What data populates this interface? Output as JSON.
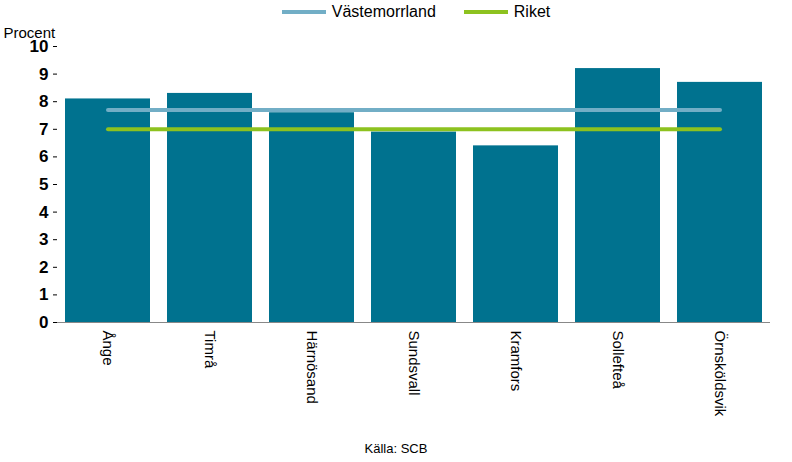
{
  "chart_data": {
    "type": "bar",
    "ylabel": "Procent",
    "caption": "Källa: SCB",
    "categories": [
      "Ånge",
      "Timrå",
      "Härnösand",
      "Sundsvall",
      "Kramfors",
      "Sollefteå",
      "Örnsköldsvik"
    ],
    "series": [
      {
        "type": "bar",
        "color": "#00728f",
        "values": [
          8.1,
          8.3,
          7.6,
          6.9,
          6.4,
          9.2,
          8.7
        ]
      },
      {
        "name": "Västemorrland",
        "type": "line",
        "color": "#72aec6",
        "values": [
          7.7,
          7.7,
          7.7,
          7.7,
          7.7,
          7.7,
          7.7
        ]
      },
      {
        "name": "Riket",
        "type": "line",
        "color": "#8dc21f",
        "values": [
          7.0,
          7.0,
          7.0,
          7.0,
          7.0,
          7.0,
          7.0
        ]
      }
    ],
    "legend": "top",
    "grid": false,
    "ylim": [
      0,
      10
    ],
    "yticks": [
      0,
      1,
      2,
      3,
      4,
      5,
      6,
      7,
      8,
      9,
      10
    ]
  }
}
